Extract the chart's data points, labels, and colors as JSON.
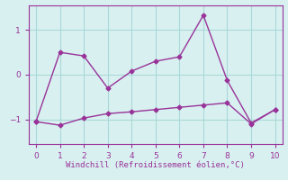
{
  "line1_x": [
    0,
    1,
    2,
    3,
    4,
    5,
    6,
    7,
    8,
    9,
    10
  ],
  "line1_y": [
    -1.05,
    0.5,
    0.42,
    -0.3,
    0.08,
    0.3,
    0.4,
    1.33,
    -0.13,
    -1.08,
    -0.78
  ],
  "line2_x": [
    0,
    1,
    2,
    3,
    4,
    5,
    6,
    7,
    8,
    9,
    10
  ],
  "line2_y": [
    -1.05,
    -1.13,
    -0.97,
    -0.87,
    -0.83,
    -0.78,
    -0.73,
    -0.68,
    -0.63,
    -1.1,
    -0.78
  ],
  "line_color": "#993399",
  "bg_color": "#d8f0f0",
  "grid_color": "#aad8d8",
  "xlabel": "Windchill (Refroidissement éolien,°C)",
  "xlim": [
    -0.3,
    10.3
  ],
  "ylim": [
    -1.55,
    1.55
  ],
  "yticks": [
    -1,
    0,
    1
  ],
  "xticks": [
    0,
    1,
    2,
    3,
    4,
    5,
    6,
    7,
    8,
    9,
    10
  ],
  "xlabel_color": "#993399",
  "tick_color": "#993399",
  "marker": "D",
  "markersize": 2.5,
  "linewidth": 1.0
}
